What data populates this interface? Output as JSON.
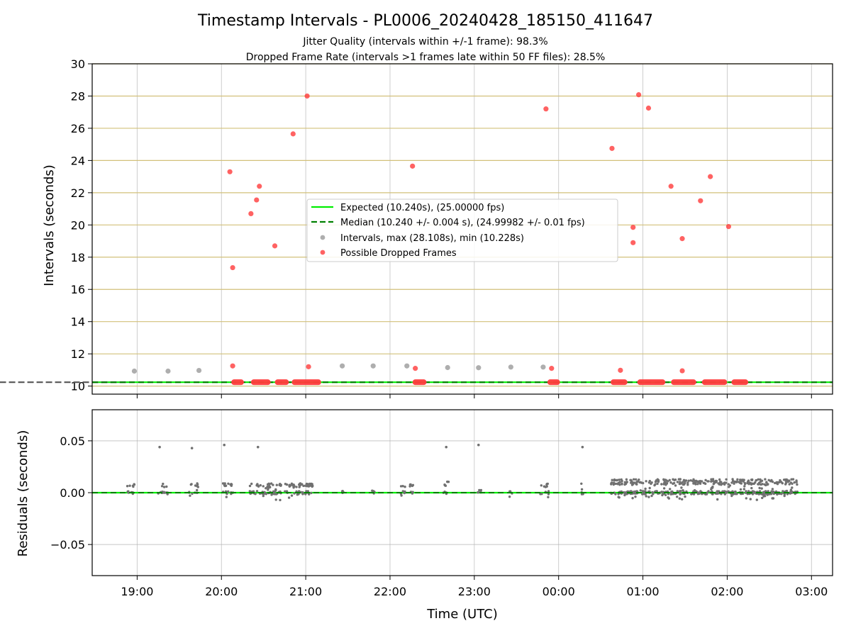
{
  "chart_data": [
    {
      "type": "scatter",
      "panel": "intervals",
      "title": "Timestamp Intervals - PL0006_20240428_185150_411647",
      "subtitle_lines": [
        "Jitter Quality (intervals within +/-1 frame): 98.3%",
        "Dropped Frame Rate (intervals >1 frames late within 50 FF files): 28.5%"
      ],
      "ylabel": "Intervals (seconds)",
      "xlabel": "",
      "ylim": [
        9.5,
        30
      ],
      "yticks": [
        10,
        12,
        14,
        16,
        18,
        20,
        22,
        24,
        26,
        28,
        30
      ],
      "ytick_labels": [
        "10",
        "12",
        "14",
        "16",
        "18",
        "20",
        "22",
        "24",
        "26",
        "28",
        "30"
      ],
      "hlines": [
        10,
        12,
        14,
        16,
        18,
        20,
        22,
        24,
        26,
        28,
        30
      ],
      "expected_interval": 10.24,
      "median_interval": 10.24,
      "legend_placement": "center",
      "legend": [
        "Expected (10.240s), (25.00000 fps)",
        "Median (10.240 +/- 0.004 s), (24.99982 +/- 0.01 fps)",
        "Intervals, max (28.108s), min (10.228s)",
        "Possible Dropped Frames"
      ],
      "normal_band": {
        "x_start": "18:52",
        "x_end": "02:50",
        "value": 10.24
      },
      "normal_outliers": [
        {
          "x": "18:58",
          "y": 10.93
        },
        {
          "x": "19:22",
          "y": 10.93
        },
        {
          "x": "19:44",
          "y": 10.97
        },
        {
          "x": "21:26",
          "y": 11.25
        },
        {
          "x": "21:48",
          "y": 11.25
        },
        {
          "x": "22:12",
          "y": 11.25
        },
        {
          "x": "22:41",
          "y": 11.15
        },
        {
          "x": "23:03",
          "y": 11.14
        },
        {
          "x": "23:26",
          "y": 11.18
        },
        {
          "x": "23:49",
          "y": 11.18
        },
        {
          "x": "00:18",
          "y": 11.14
        },
        {
          "x": "01:15",
          "y": 10.85
        },
        {
          "x": "02:21",
          "y": 10.38
        },
        {
          "x": "02:42",
          "y": 10.43
        }
      ],
      "dropped_clusters": [
        {
          "x_start": "20:07",
          "x_end": "20:16"
        },
        {
          "x_start": "20:21",
          "x_end": "20:35"
        },
        {
          "x_start": "20:38",
          "x_end": "20:48"
        },
        {
          "x_start": "20:50",
          "x_end": "21:11"
        },
        {
          "x_start": "22:16",
          "x_end": "22:26"
        },
        {
          "x_start": "23:52",
          "x_end": "24:01"
        },
        {
          "x_start": "24:37",
          "x_end": "24:49"
        },
        {
          "x_start": "24:56",
          "x_end": "25:16"
        },
        {
          "x_start": "25:20",
          "x_end": "25:38"
        },
        {
          "x_start": "25:42",
          "x_end": "26:00"
        },
        {
          "x_start": "26:03",
          "x_end": "26:15"
        }
      ],
      "dropped_points": [
        {
          "x": "20:06",
          "y": 23.3
        },
        {
          "x": "20:08",
          "y": 17.35
        },
        {
          "x": "20:08",
          "y": 11.25
        },
        {
          "x": "20:21",
          "y": 20.7
        },
        {
          "x": "20:25",
          "y": 21.55
        },
        {
          "x": "20:27",
          "y": 22.4
        },
        {
          "x": "20:38",
          "y": 18.7
        },
        {
          "x": "20:51",
          "y": 25.65
        },
        {
          "x": "21:01",
          "y": 28.0
        },
        {
          "x": "21:02",
          "y": 11.2
        },
        {
          "x": "22:16",
          "y": 23.65
        },
        {
          "x": "22:18",
          "y": 11.1
        },
        {
          "x": "23:51",
          "y": 27.2
        },
        {
          "x": "23:55",
          "y": 11.1
        },
        {
          "x": "24:38",
          "y": 24.75
        },
        {
          "x": "24:44",
          "y": 10.98
        },
        {
          "x": "24:53",
          "y": 19.85
        },
        {
          "x": "24:53",
          "y": 18.9
        },
        {
          "x": "24:57",
          "y": 28.08
        },
        {
          "x": "25:04",
          "y": 27.25
        },
        {
          "x": "25:20",
          "y": 22.4
        },
        {
          "x": "25:28",
          "y": 19.15
        },
        {
          "x": "25:28",
          "y": 10.95
        },
        {
          "x": "25:41",
          "y": 21.5
        },
        {
          "x": "25:48",
          "y": 23.0
        },
        {
          "x": "26:01",
          "y": 19.9
        }
      ]
    },
    {
      "type": "scatter",
      "panel": "residuals",
      "ylabel": "Residuals (seconds)",
      "xlabel": "Time (UTC)",
      "ylim": [
        -0.08,
        0.08
      ],
      "yticks": [
        -0.05,
        0.0,
        0.05
      ],
      "ytick_labels": [
        "−0.05",
        "0.00",
        "0.05"
      ],
      "grid": true,
      "x_range": [
        "18:28",
        "27:15"
      ],
      "xticks": [
        "19:00",
        "20:00",
        "21:00",
        "22:00",
        "23:00",
        "24:00",
        "25:00",
        "26:00",
        "27:00"
      ],
      "xtick_labels": [
        "19:00",
        "20:00",
        "21:00",
        "22:00",
        "23:00",
        "00:00",
        "01:00",
        "02:00",
        "03:00"
      ],
      "zero_line": 0.0,
      "spikes": [
        {
          "x": "19:16",
          "y": 0.044
        },
        {
          "x": "19:39",
          "y": 0.043
        },
        {
          "x": "20:02",
          "y": 0.046
        },
        {
          "x": "20:26",
          "y": 0.044
        },
        {
          "x": "22:40",
          "y": 0.044
        },
        {
          "x": "23:03",
          "y": 0.046
        },
        {
          "x": "24:17",
          "y": 0.044
        }
      ],
      "noise_segments": [
        {
          "x_start": "18:52",
          "x_end": "18:58",
          "y_low": 0.0,
          "y_high": 0.009,
          "density": 14
        },
        {
          "x_start": "19:15",
          "x_end": "19:22",
          "y_low": 0.0,
          "y_high": 0.009,
          "density": 14
        },
        {
          "x_start": "19:37",
          "x_end": "19:44",
          "y_low": -0.004,
          "y_high": 0.009,
          "density": 14
        },
        {
          "x_start": "20:00",
          "x_end": "20:10",
          "y_low": -0.008,
          "y_high": 0.009,
          "density": 22
        },
        {
          "x_start": "20:20",
          "x_end": "21:05",
          "y_low": -0.008,
          "y_high": 0.009,
          "density": 140
        },
        {
          "x_start": "21:25",
          "x_end": "21:27",
          "y_low": -0.004,
          "y_high": 0.002,
          "density": 4
        },
        {
          "x_start": "21:47",
          "x_end": "21:49",
          "y_low": -0.004,
          "y_high": 0.002,
          "density": 4
        },
        {
          "x_start": "22:07",
          "x_end": "22:17",
          "y_low": -0.006,
          "y_high": 0.008,
          "density": 18
        },
        {
          "x_start": "22:38",
          "x_end": "22:42",
          "y_low": -0.005,
          "y_high": 0.011,
          "density": 10
        },
        {
          "x_start": "23:02",
          "x_end": "23:05",
          "y_low": -0.005,
          "y_high": 0.003,
          "density": 6
        },
        {
          "x_start": "23:25",
          "x_end": "23:27",
          "y_low": -0.004,
          "y_high": 0.002,
          "density": 4
        },
        {
          "x_start": "23:47",
          "x_end": "23:55",
          "y_low": -0.006,
          "y_high": 0.009,
          "density": 14
        },
        {
          "x_start": "24:16",
          "x_end": "24:18",
          "y_low": -0.002,
          "y_high": 0.009,
          "density": 6
        },
        {
          "x_start": "24:37",
          "x_end": "26:50",
          "y_low": -0.007,
          "y_high": 0.013,
          "density": 560
        }
      ]
    }
  ],
  "colors": {
    "expected": "#00ee00",
    "median": "#008000",
    "interval_points": "#a0a0a0",
    "dropped": "#ff3b3b",
    "hgrid_top": "#d2c07a",
    "grid": "#b0b0b0",
    "residual_points": "#707070",
    "band": "#555555"
  }
}
